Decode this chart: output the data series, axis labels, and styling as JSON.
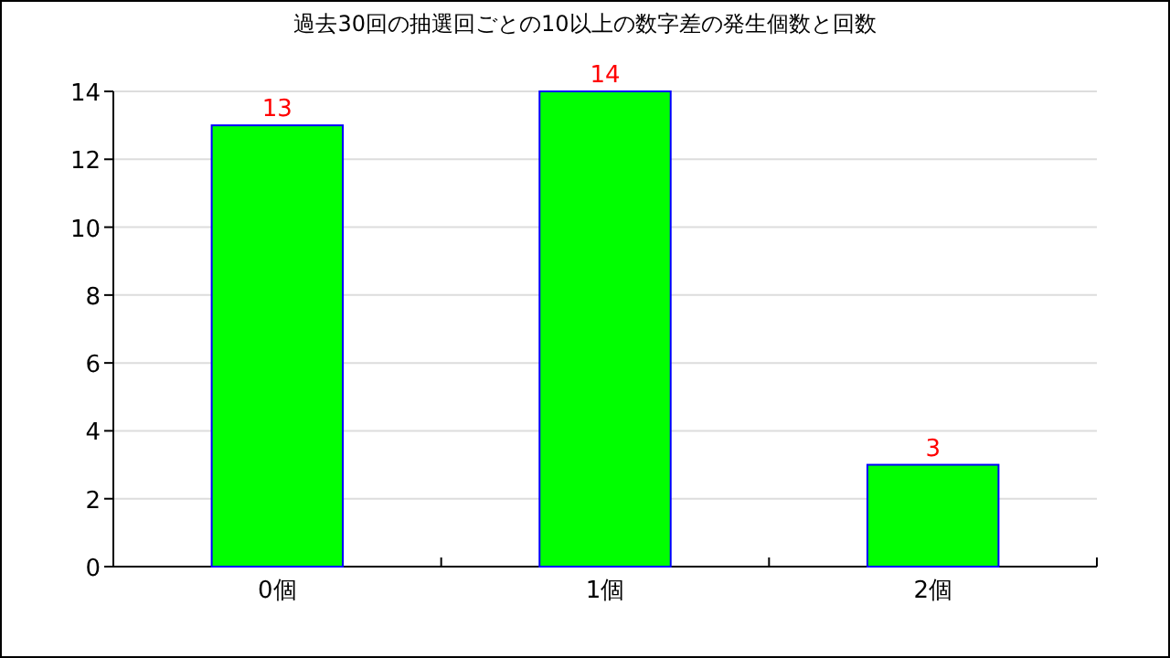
{
  "chart_data": {
    "type": "bar",
    "title": "過去30回の抽選回ごとの10以上の数字差の発生個数と回数",
    "categories": [
      "0個",
      "1個",
      "2個"
    ],
    "series": [
      {
        "color": "#00ff00",
        "values": [
          13,
          14,
          3
        ]
      }
    ],
    "ylim": [
      0,
      14
    ],
    "yticks": [
      0,
      2,
      4,
      6,
      8,
      10,
      12,
      14
    ],
    "grid": "y",
    "data_labels": true
  }
}
